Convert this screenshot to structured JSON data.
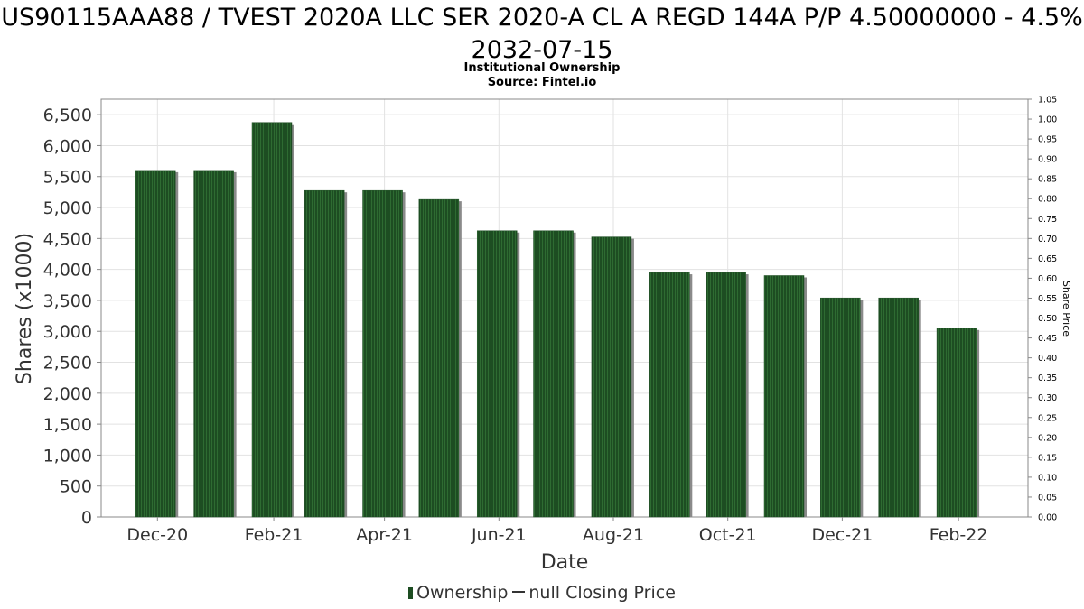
{
  "header": {
    "title": "US90115AAA88 / TVEST 2020A LLC SER 2020-A CL A REGD 144A P/P 4.50000000 - 4.5% 2032-07-15",
    "subtitle_line1": "Institutional Ownership",
    "subtitle_line2": "Source: Fintel.io"
  },
  "legend": {
    "ownership_label": "Ownership",
    "price_label": "null Closing Price"
  },
  "colors": {
    "bar": "#1d4d22",
    "bar_stripe": "#2e6b32",
    "bar_shadow": "#8a8a8a",
    "grid": "#e2e2e2"
  },
  "chart_data": {
    "type": "bar",
    "title": "US90115AAA88 / TVEST 2020A LLC SER 2020-A CL A REGD 144A P/P 4.50000000 - 4.5% 2032-07-15",
    "xlabel": "Date",
    "ylabel": "Shares (x1000)",
    "y2label": "Share Price",
    "ylim": [
      0,
      6750
    ],
    "y2lim": [
      0,
      1.05
    ],
    "yticks": [
      "0",
      "500",
      "1,000",
      "1,500",
      "2,000",
      "2,500",
      "3,000",
      "3,500",
      "4,000",
      "4,500",
      "5,000",
      "5,500",
      "6,000",
      "6,500"
    ],
    "y2ticks": [
      "0.00",
      "0.05",
      "0.10",
      "0.15",
      "0.20",
      "0.25",
      "0.30",
      "0.35",
      "0.40",
      "0.45",
      "0.50",
      "0.55",
      "0.60",
      "0.65",
      "0.70",
      "0.75",
      "0.80",
      "0.85",
      "0.90",
      "0.95",
      "1.00",
      "1.05"
    ],
    "x_tick_labels": [
      "Dec-20",
      "Feb-21",
      "Apr-21",
      "Jun-21",
      "Aug-21",
      "Oct-21",
      "Dec-21",
      "Feb-22"
    ],
    "x": [
      "2020-11-30",
      "2020-12-31",
      "2021-01-31",
      "2021-02-28",
      "2021-03-31",
      "2021-04-30",
      "2021-05-31",
      "2021-06-30",
      "2021-07-31",
      "2021-08-31",
      "2021-09-30",
      "2021-10-31",
      "2021-11-30",
      "2021-12-31",
      "2022-01-31"
    ],
    "series": [
      {
        "name": "Ownership",
        "values": [
          5600,
          5600,
          6375,
          5275,
          5275,
          5130,
          4625,
          4625,
          4525,
          3950,
          3950,
          3900,
          3540,
          3540,
          3050
        ]
      }
    ],
    "grid": true,
    "legend_position": "bottom"
  }
}
